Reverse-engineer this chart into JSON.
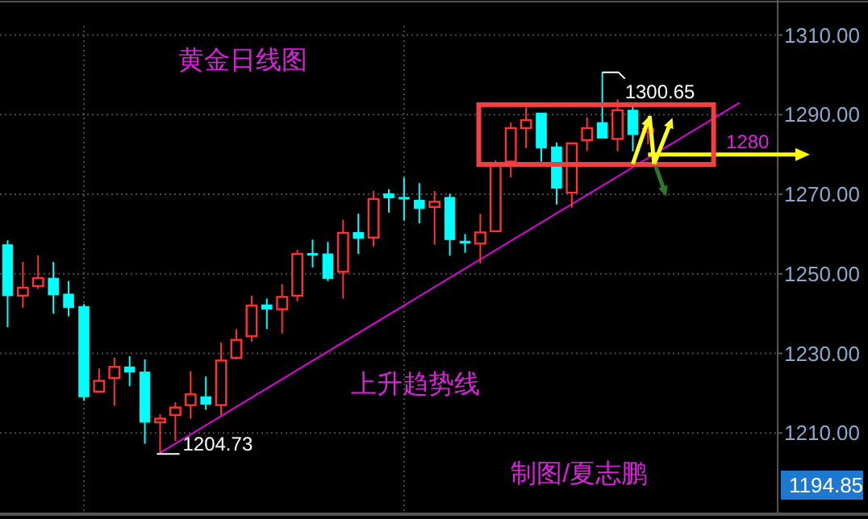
{
  "chart_data": {
    "type": "candlestick",
    "title": "黄金日线图",
    "categories": [
      null,
      null,
      null,
      null,
      null,
      null,
      null,
      null,
      null,
      null,
      null,
      null,
      null,
      null,
      null,
      null,
      null,
      null,
      null,
      null,
      null,
      null,
      null,
      null,
      null,
      null,
      null,
      null,
      null,
      null,
      null,
      null,
      null,
      null,
      null,
      null,
      null,
      null,
      null,
      null,
      null,
      null,
      null,
      null,
      null,
      null,
      null,
      null,
      null,
      null,
      null
    ],
    "ohlc": [
      [
        1257.3,
        1258.4,
        1236.6,
        1244.5
      ],
      [
        1244.5,
        1253.0,
        1241.5,
        1246.5
      ],
      [
        1246.9,
        1254.6,
        1246.2,
        1248.9
      ],
      [
        1248.9,
        1253.0,
        1240.0,
        1244.7
      ],
      [
        1244.9,
        1248.2,
        1239.3,
        1241.5
      ],
      [
        1241.8,
        1242.4,
        1218.1,
        1219.1
      ],
      [
        1220.4,
        1226.2,
        1220.4,
        1223.1
      ],
      [
        1223.8,
        1228.9,
        1216.8,
        1226.6
      ],
      [
        1226.6,
        1229.3,
        1221.8,
        1225.3
      ],
      [
        1225.3,
        1228.5,
        1207.3,
        1212.7
      ],
      [
        1212.7,
        1214.7,
        1204.73,
        1213.6
      ],
      [
        1214.5,
        1217.7,
        1208.0,
        1216.4
      ],
      [
        1217.0,
        1225.5,
        1213.6,
        1219.7
      ],
      [
        1219.1,
        1224.2,
        1215.8,
        1217.2
      ],
      [
        1217.0,
        1232.7,
        1214.5,
        1228.2
      ],
      [
        1228.9,
        1236.1,
        1228.5,
        1233.4
      ],
      [
        1234.3,
        1244.5,
        1233.0,
        1242.0
      ],
      [
        1242.2,
        1243.8,
        1236.1,
        1241.1
      ],
      [
        1241.1,
        1247.4,
        1235.0,
        1244.2
      ],
      [
        1244.5,
        1256.0,
        1243.1,
        1255.0
      ],
      [
        1255.1,
        1258.6,
        1251.6,
        1254.9
      ],
      [
        1255.0,
        1258.0,
        1248.2,
        1248.8
      ],
      [
        1250.5,
        1263.6,
        1243.8,
        1260.3
      ],
      [
        1260.4,
        1265.1,
        1255.0,
        1258.9
      ],
      [
        1259.1,
        1270.8,
        1256.9,
        1268.8
      ],
      [
        1270.1,
        1271.2,
        1265.4,
        1269.1
      ],
      [
        1269.2,
        1274.2,
        1263.4,
        1268.8
      ],
      [
        1268.5,
        1272.8,
        1262.7,
        1266.4
      ],
      [
        1266.8,
        1270.8,
        1257.3,
        1268.1
      ],
      [
        1269.2,
        1270.1,
        1254.6,
        1258.6
      ],
      [
        1258.2,
        1260.0,
        1255.3,
        1257.7
      ],
      [
        1257.6,
        1265.1,
        1252.6,
        1260.4
      ],
      [
        1260.7,
        1278.5,
        1260.7,
        1277.8
      ],
      [
        1278.2,
        1288.0,
        1274.2,
        1286.6
      ],
      [
        1286.6,
        1291.8,
        1281.6,
        1288.6
      ],
      [
        1290.4,
        1290.4,
        1278.2,
        1281.6
      ],
      [
        1281.9,
        1283.0,
        1267.4,
        1271.5
      ],
      [
        1270.4,
        1282.8,
        1266.6,
        1282.8
      ],
      [
        1283.6,
        1289.3,
        1280.9,
        1286.6
      ],
      [
        1288.0,
        1300.65,
        1284.1,
        1284.1
      ],
      [
        1283.9,
        1293.8,
        1280.8,
        1291.1
      ],
      [
        1291.1,
        1292.8,
        1280.8,
        1285.0
      ],
      [
        1285.7,
        1288.0,
        1282.6,
        1286.4
      ],
      null,
      null,
      null,
      null,
      null,
      null,
      null,
      null
    ],
    "colors": [
      "#00ffff",
      "#ff3232",
      "#ff3232",
      "#00ffff",
      "#00ffff",
      "#00ffff",
      "#ff3232",
      "#ff3232",
      "#00ffff",
      "#00ffff",
      "#ff3232",
      "#ff3232",
      "#ff3232",
      "#00ffff",
      "#ff3232",
      "#ff3232",
      "#ff3232",
      "#00ffff",
      "#ff3232",
      "#ff3232",
      "#00ffff",
      "#00ffff",
      "#ff3232",
      "#00ffff",
      "#ff3232",
      "#00ffff",
      "#00ffff",
      "#00ffff",
      "#ff3232",
      "#00ffff",
      "#00ffff",
      "#ff3232",
      "#ff3232",
      "#ff3232",
      "#ff3232",
      "#00ffff",
      "#00ffff",
      "#ff3232",
      "#ff3232",
      "#00ffff",
      "#ff3232",
      "#00ffff",
      "#ff3232",
      null,
      null,
      null,
      null,
      null,
      null,
      null,
      null
    ],
    "ylim": [
      1190,
      1318
    ],
    "yticks": [
      {
        "value": 1210,
        "label": "1210.00"
      },
      {
        "value": 1230,
        "label": "1230.00"
      },
      {
        "value": 1250,
        "label": "1250.00"
      },
      {
        "value": 1270,
        "label": "1270.00"
      },
      {
        "value": 1290,
        "label": "1290.00"
      },
      {
        "value": 1310,
        "label": "1310.00"
      }
    ],
    "grid": "y",
    "series": [
      {
        "type": "line",
        "values": [
          null,
          null,
          null,
          null,
          null,
          null,
          null,
          null,
          null,
          null,
          1205,
          null,
          null,
          null,
          null,
          null,
          null,
          null,
          null,
          null,
          null,
          null,
          null,
          null,
          null,
          null,
          null,
          null,
          null,
          null,
          null,
          null,
          null,
          null,
          null,
          null,
          null,
          null,
          null,
          null,
          null,
          null,
          null,
          null,
          null,
          null,
          null,
          null,
          1293,
          null,
          null
        ],
        "color": "#e000e0"
      }
    ],
    "ref_lines": [
      {
        "axis": "y",
        "value": 1280,
        "label": "1280",
        "color": "#ffff00"
      }
    ],
    "annotations": [
      "上升趋势线",
      "制图/夏志鹏",
      "1204.73",
      "1300.65",
      "1194.85"
    ]
  }
}
